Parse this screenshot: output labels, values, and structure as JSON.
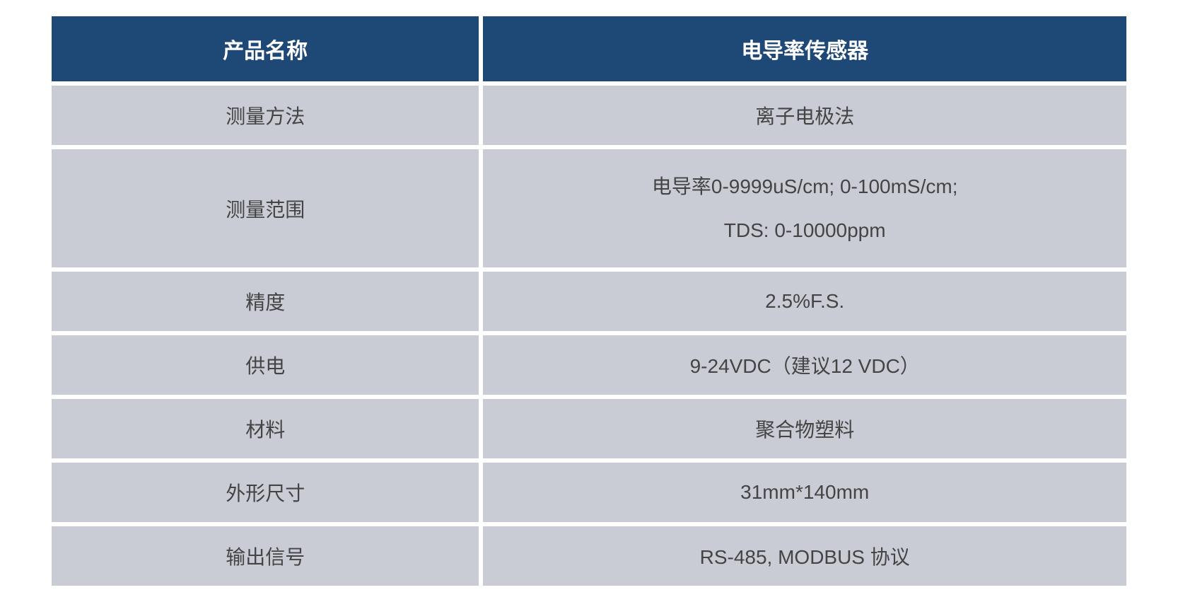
{
  "table": {
    "type": "table",
    "header_bg_color": "#1e4976",
    "header_text_color": "#ffffff",
    "header_fontsize": 30,
    "header_fontweight": "bold",
    "cell_bg_color": "#c9cbd5",
    "cell_text_color": "#444444",
    "cell_fontsize": 28,
    "border_color": "#ffffff",
    "border_width": 3,
    "col_widths_pct": [
      40,
      60
    ],
    "columns": [
      "产品名称",
      "电导率传感器"
    ],
    "rows": [
      {
        "label": "测量方法",
        "value": "离子电极法"
      },
      {
        "label": "测量范围",
        "value_line1": "电导率0-9999uS/cm; 0-100mS/cm;",
        "value_line2": "TDS: 0-10000ppm",
        "multiline": true
      },
      {
        "label": "精度",
        "value": "2.5%F.S."
      },
      {
        "label": "供电",
        "value": "9-24VDC（建议12 VDC）"
      },
      {
        "label": "材料",
        "value": "聚合物塑料"
      },
      {
        "label": "外形尺寸",
        "value": "31mm*140mm"
      },
      {
        "label": "输出信号",
        "value": "RS-485, MODBUS 协议"
      }
    ]
  }
}
